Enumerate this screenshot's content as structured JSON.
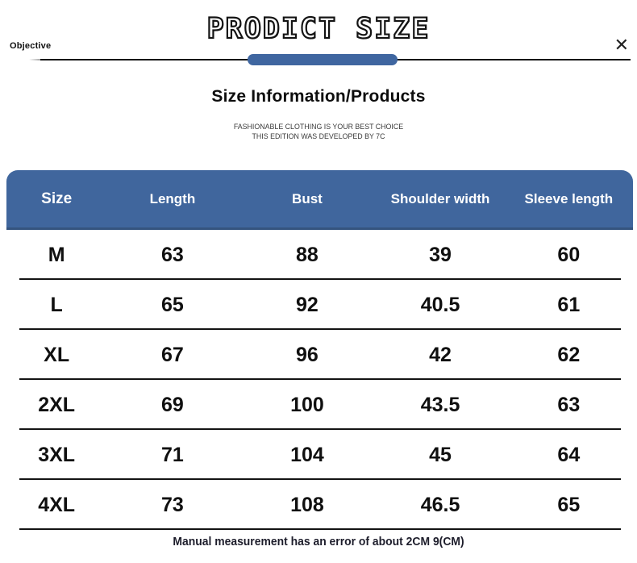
{
  "page": {
    "objective_label": "Objective",
    "close_glyph": "✕",
    "title": "PRODICT SIZE",
    "heading": "Size Information/Products",
    "subtitle_line1": "FASHIONABLE CLOTHING IS YOUR BEST CHOICE",
    "subtitle_line2": "THIS EDITION WAS DEVELOPED BY 7C",
    "footer_note": "Manual measurement has an error of about 2CM 9(CM)"
  },
  "colors": {
    "accent_blue": "#40669d",
    "accent_blue_dark": "#35547f",
    "text_dark": "#141414"
  },
  "chart_data": {
    "type": "table",
    "title": "Size Information/Products",
    "columns": [
      "Size",
      "Length",
      "Bust",
      "Shoulder width",
      "Sleeve length"
    ],
    "rows": [
      [
        "M",
        "63",
        "88",
        "39",
        "60"
      ],
      [
        "L",
        "65",
        "92",
        "40.5",
        "61"
      ],
      [
        "XL",
        "67",
        "96",
        "42",
        "62"
      ],
      [
        "2XL",
        "69",
        "100",
        "43.5",
        "63"
      ],
      [
        "3XL",
        "71",
        "104",
        "45",
        "64"
      ],
      [
        "4XL",
        "73",
        "108",
        "46.5",
        "65"
      ]
    ]
  }
}
